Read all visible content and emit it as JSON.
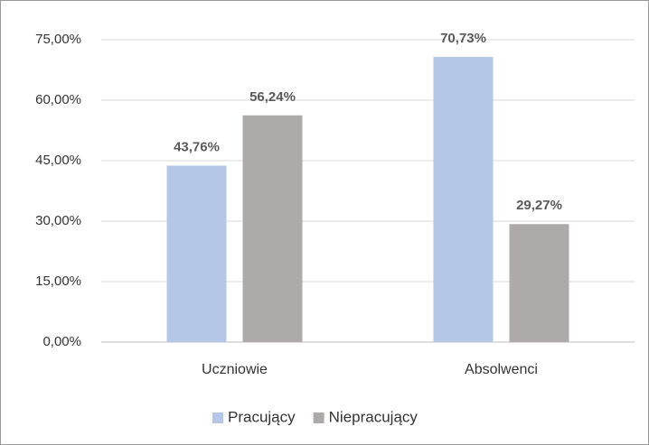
{
  "chart_data": {
    "type": "bar",
    "categories": [
      "Uczniowie",
      "Absolwenci"
    ],
    "series": [
      {
        "name": "Pracujący",
        "color": "#b4c7e7",
        "values": [
          43.76,
          70.73
        ],
        "value_labels": [
          "43,76%",
          "70,73%"
        ]
      },
      {
        "name": "Niepracujący",
        "color": "#aeaaaa",
        "values": [
          56.24,
          29.27
        ],
        "value_labels": [
          "56,24%",
          "29,27%"
        ]
      }
    ],
    "ylim": [
      0,
      75
    ],
    "yticks": [
      {
        "value": 0,
        "label": "0,00%"
      },
      {
        "value": 15,
        "label": "15,00%"
      },
      {
        "value": 30,
        "label": "30,00%"
      },
      {
        "value": 45,
        "label": "45,00%"
      },
      {
        "value": 60,
        "label": "60,00%"
      },
      {
        "value": 75,
        "label": "75,00%"
      }
    ],
    "grid": true,
    "legend": "bottom"
  }
}
